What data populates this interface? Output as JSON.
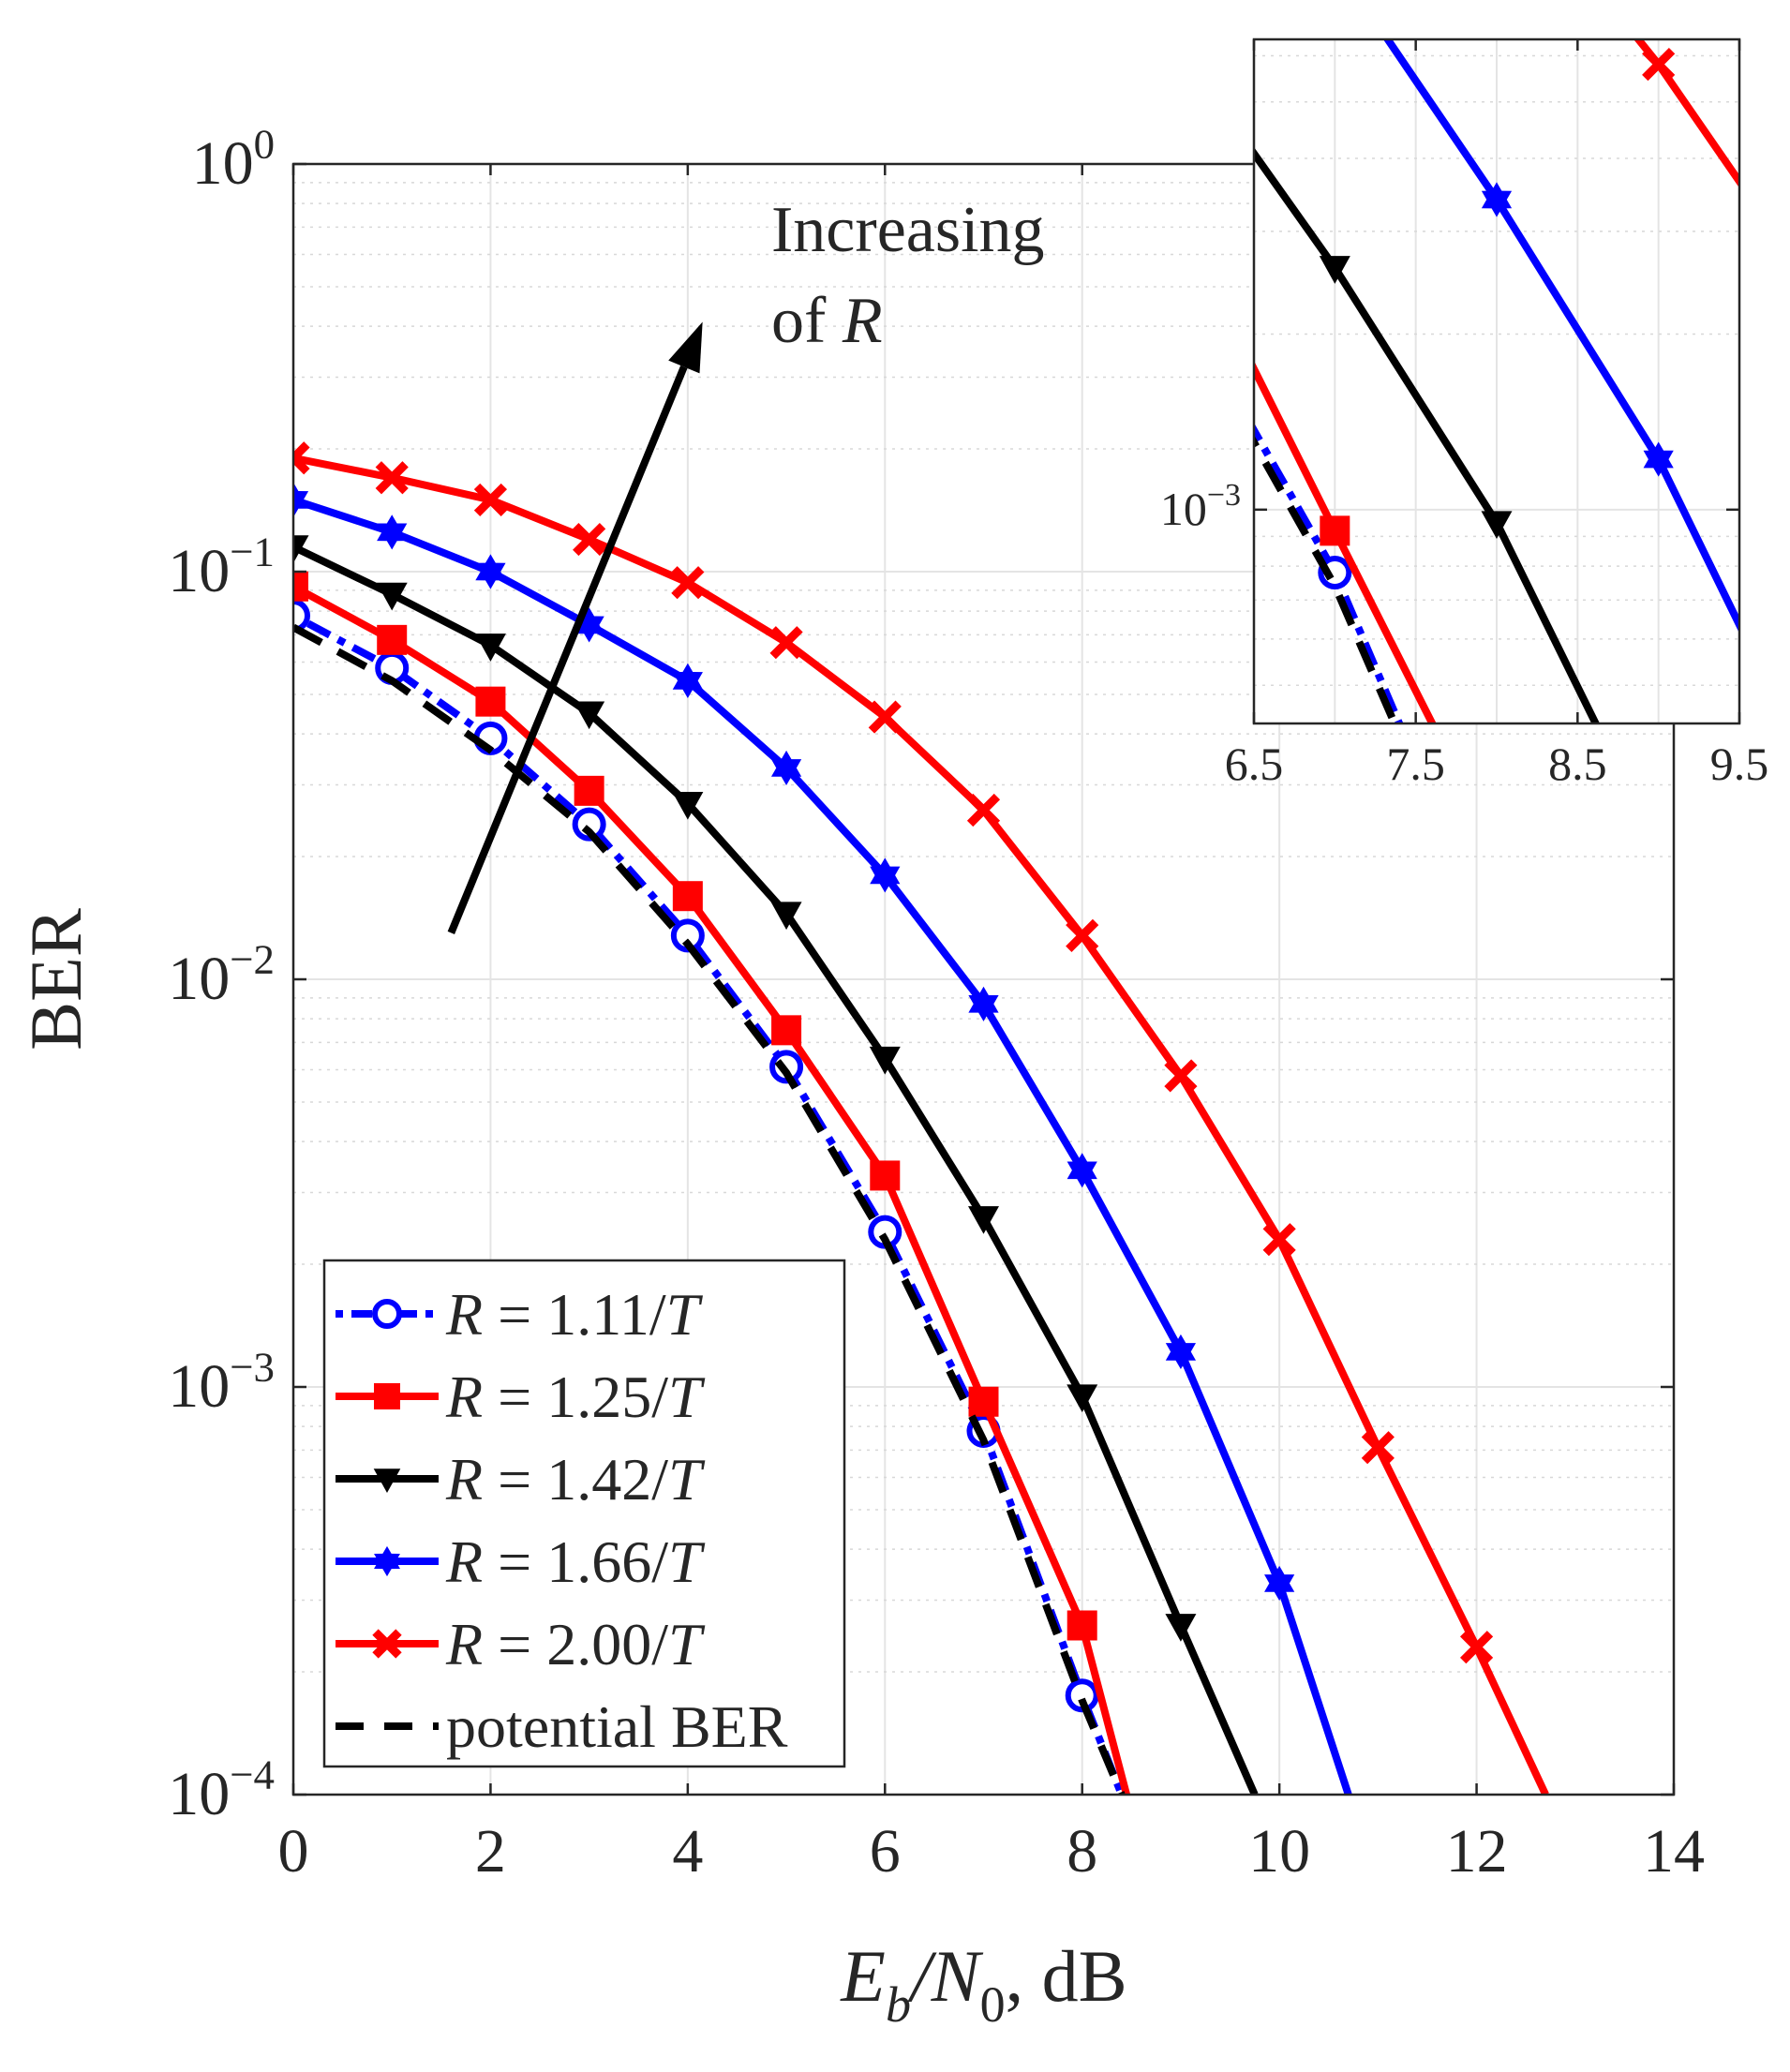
{
  "chart_data": {
    "type": "line",
    "yscale": "log",
    "xlabel": {
      "main": "E",
      "sub1": "b",
      "mid": "/N",
      "sub2": "0",
      "tail": ", dB"
    },
    "ylabel": "BER",
    "xlim": [
      0,
      14
    ],
    "ylim": [
      0.0001,
      1
    ],
    "grid": true,
    "xticks": [
      {
        "v": 0,
        "label": "0"
      },
      {
        "v": 2,
        "label": "2"
      },
      {
        "v": 4,
        "label": "4"
      },
      {
        "v": 6,
        "label": "6"
      },
      {
        "v": 8,
        "label": "8"
      },
      {
        "v": 10,
        "label": "10"
      },
      {
        "v": 12,
        "label": "12"
      },
      {
        "v": 14,
        "label": "14"
      }
    ],
    "yticks": [
      {
        "v": 1,
        "base": "10",
        "exp": "0"
      },
      {
        "v": 0.1,
        "base": "10",
        "exp": "−1"
      },
      {
        "v": 0.01,
        "base": "10",
        "exp": "−2"
      },
      {
        "v": 0.001,
        "base": "10",
        "exp": "−3"
      },
      {
        "v": 0.0001,
        "base": "10",
        "exp": "−4"
      }
    ],
    "legend": {
      "placement": "bottom-left",
      "entries": [
        {
          "series": 0,
          "pre": "R",
          "text": " = 1.11/",
          "post": "T"
        },
        {
          "series": 1,
          "pre": "R",
          "text": " = 1.25/",
          "post": "T"
        },
        {
          "series": 2,
          "pre": "R",
          "text": " = 1.42/",
          "post": "T"
        },
        {
          "series": 3,
          "pre": "R",
          "text": " = 1.66/",
          "post": "T"
        },
        {
          "series": 4,
          "pre": "R",
          "text": " = 2.00/",
          "post": "T"
        },
        {
          "series": 5,
          "pre": "",
          "text": "potential BER",
          "post": ""
        }
      ]
    },
    "annotation": {
      "line1": "Increasing",
      "line2_pre": "of ",
      "line2_var": "R",
      "arrow_from": [
        1.6,
        0.013
      ],
      "arrow_to": [
        4.15,
        0.41
      ]
    },
    "series": [
      {
        "name": "R = 1.11/T",
        "color": "#0000ff",
        "dash": "dotdash",
        "marker": "circle",
        "x": [
          0,
          1,
          2,
          3,
          4,
          5,
          6,
          7,
          8,
          8.4
        ],
        "y": [
          0.078,
          0.058,
          0.039,
          0.024,
          0.0128,
          0.0061,
          0.0024,
          0.00078,
          0.000175,
          0.0001
        ],
        "markers_at": [
          0,
          1,
          2,
          3,
          4,
          5,
          6,
          7,
          8
        ]
      },
      {
        "name": "R = 1.25/T",
        "color": "#ff0000",
        "dash": "solid",
        "marker": "square",
        "x": [
          0,
          1,
          2,
          3,
          4,
          5,
          6,
          7,
          8,
          8.45
        ],
        "y": [
          0.092,
          0.068,
          0.048,
          0.029,
          0.016,
          0.0075,
          0.0033,
          0.00092,
          0.00026,
          0.0001
        ],
        "markers_at": [
          0,
          1,
          2,
          3,
          4,
          5,
          6,
          7,
          8
        ]
      },
      {
        "name": "R = 1.42/T",
        "color": "#000000",
        "dash": "solid",
        "marker": "triangle-down",
        "x": [
          0,
          1,
          2,
          3,
          4,
          5,
          6,
          7,
          8,
          9,
          9.75
        ],
        "y": [
          0.115,
          0.088,
          0.066,
          0.045,
          0.027,
          0.0145,
          0.0064,
          0.0026,
          0.00095,
          0.00026,
          0.0001
        ],
        "markers_at": [
          0,
          1,
          2,
          3,
          4,
          5,
          6,
          7,
          8,
          9
        ]
      },
      {
        "name": "R = 1.66/T",
        "color": "#0000ff",
        "dash": "solid",
        "marker": "hexagram",
        "x": [
          0,
          1,
          2,
          3,
          4,
          5,
          6,
          7,
          8,
          9,
          10,
          10.7
        ],
        "y": [
          0.15,
          0.125,
          0.1,
          0.074,
          0.054,
          0.033,
          0.018,
          0.0087,
          0.0034,
          0.00122,
          0.00033,
          0.0001
        ],
        "markers_at": [
          0,
          1,
          2,
          3,
          4,
          5,
          6,
          7,
          8,
          9,
          10
        ]
      },
      {
        "name": "R = 2.00/T",
        "color": "#ff0000",
        "dash": "solid",
        "marker": "x",
        "x": [
          0,
          1,
          2,
          3,
          4,
          5,
          6,
          7,
          8,
          9,
          10,
          11,
          12,
          12.7
        ],
        "y": [
          0.19,
          0.17,
          0.15,
          0.12,
          0.094,
          0.067,
          0.044,
          0.026,
          0.0128,
          0.0058,
          0.0023,
          0.00071,
          0.00023,
          0.0001
        ],
        "markers_at": [
          0,
          1,
          2,
          3,
          4,
          5,
          6,
          7,
          8,
          9,
          10,
          11,
          12
        ]
      },
      {
        "name": "potential BER",
        "color": "#000000",
        "dash": "dash",
        "marker": "none",
        "x": [
          0,
          1,
          2,
          3,
          4,
          5,
          6,
          7,
          8,
          8.4
        ],
        "y": [
          0.073,
          0.054,
          0.0365,
          0.023,
          0.0122,
          0.0059,
          0.0023,
          0.00074,
          0.00017,
          0.0001
        ],
        "markers_at": []
      }
    ],
    "inset": {
      "xlim": [
        6.5,
        9.5
      ],
      "ylim": [
        0.00043,
        0.0064
      ],
      "xticks": [
        {
          "v": 6.5,
          "label": "6.5"
        },
        {
          "v": 7.5,
          "label": "7.5"
        },
        {
          "v": 8.5,
          "label": "8.5"
        },
        {
          "v": 9.5,
          "label": "9.5"
        }
      ],
      "yticks": [
        {
          "v": 0.001,
          "base": "10",
          "exp": "−3"
        }
      ]
    }
  }
}
